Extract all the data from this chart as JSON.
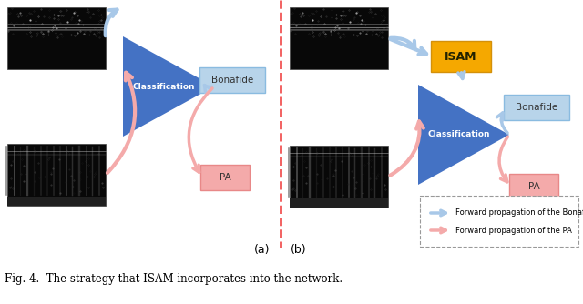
{
  "fig_width": 6.4,
  "fig_height": 3.34,
  "dpi": 100,
  "bg_color": "#ffffff",
  "light_blue_arrow": "#A8C8E8",
  "pink_arrow": "#F4AAAA",
  "orange_color": "#F5A800",
  "orange_edge": "#D4900A",
  "blue_box_color": "#B8D4EA",
  "pink_box_color": "#F4AAAA",
  "triangle_blue": "#4472C4",
  "dashed_line_color": "#EE3333",
  "caption": "Fig. 4.  The strategy that ISAM incorporates into the network.",
  "label_a": "(a)",
  "label_b": "(b)",
  "legend_blue_text": "Forward propagation of the Bonafide",
  "legend_pink_text": "Forward propagation of the PA",
  "bonafide_text": "Bonafide",
  "pa_text": "PA",
  "isam_text": "ISAM",
  "classification_text": "Classification"
}
